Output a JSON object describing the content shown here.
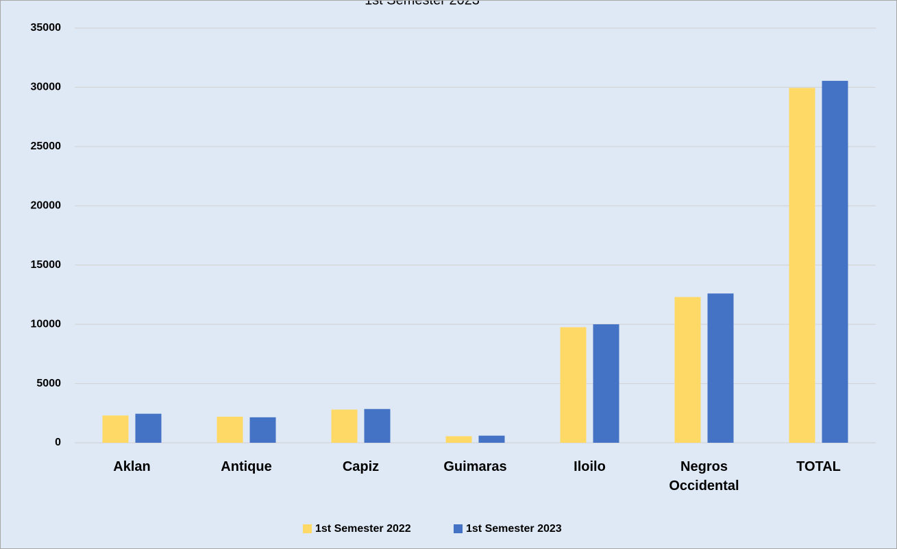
{
  "chart_data": {
    "type": "bar",
    "title": "1st Semester 2023",
    "categories": [
      "Aklan",
      "Antique",
      "Capiz",
      "Guimaras",
      "Iloilo",
      "Negros Occidental",
      "TOTAL"
    ],
    "series": [
      {
        "name": "1st Semester 2022",
        "color": "#ffd966",
        "values": [
          2300,
          2200,
          2800,
          550,
          9750,
          12300,
          29950
        ]
      },
      {
        "name": "1st Semester 2023",
        "color": "#4472c4",
        "values": [
          2450,
          2150,
          2850,
          600,
          10000,
          12600,
          30550
        ]
      }
    ],
    "ylim": [
      0,
      35000
    ],
    "yticks": [
      0,
      5000,
      10000,
      15000,
      20000,
      25000,
      30000,
      35000
    ],
    "grid": true,
    "legend": "bottom"
  }
}
